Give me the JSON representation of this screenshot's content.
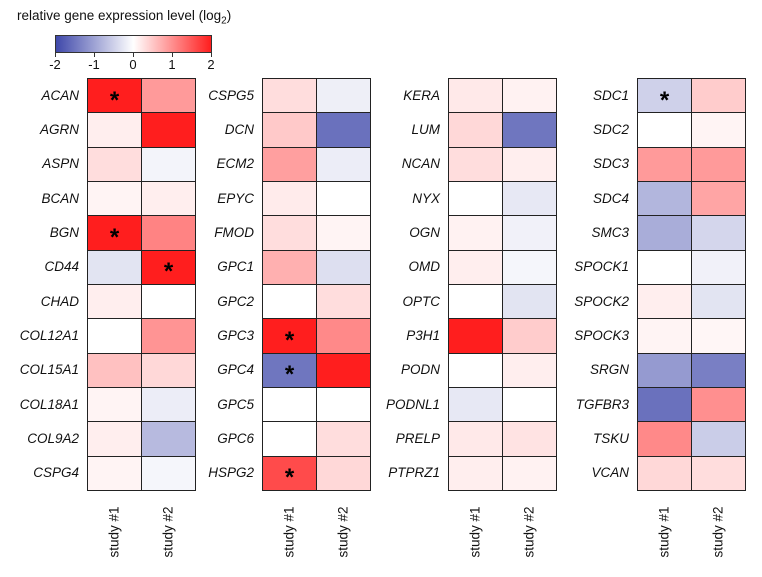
{
  "legend": {
    "title_prefix": "relative gene expression level (log",
    "title_sub": "2",
    "title_suffix": ")",
    "ticks": [
      "-2",
      "-1",
      "0",
      "1",
      "2"
    ],
    "color_negative": "#3F48AA",
    "color_zero": "#FFFFFF",
    "color_positive": "#FF1E1E"
  },
  "chart_data": {
    "type": "heatmap",
    "title": "relative gene expression level (log2)",
    "columns": [
      "study #1",
      "study #2"
    ],
    "value_range": [
      -2,
      2
    ],
    "colormap": [
      {
        "value": -2,
        "color": "#3F48AA"
      },
      {
        "value": 0,
        "color": "#FFFFFF"
      },
      {
        "value": 2,
        "color": "#FF1E1E"
      }
    ],
    "significance_marker": "*",
    "panels": [
      {
        "rows": [
          {
            "gene": "ACAN",
            "values": [
              2.0,
              0.9
            ],
            "sig": [
              true,
              false
            ]
          },
          {
            "gene": "AGRN",
            "values": [
              0.15,
              2.0
            ],
            "sig": [
              false,
              false
            ]
          },
          {
            "gene": "ASPN",
            "values": [
              0.3,
              -0.12
            ],
            "sig": [
              false,
              false
            ]
          },
          {
            "gene": "BCAN",
            "values": [
              0.1,
              0.15
            ],
            "sig": [
              false,
              false
            ]
          },
          {
            "gene": "BGN",
            "values": [
              2.0,
              1.1
            ],
            "sig": [
              true,
              false
            ]
          },
          {
            "gene": "CD44",
            "values": [
              -0.3,
              2.0
            ],
            "sig": [
              false,
              true
            ]
          },
          {
            "gene": "CHAD",
            "values": [
              0.15,
              0.0
            ],
            "sig": [
              false,
              false
            ]
          },
          {
            "gene": "COL12A1",
            "values": [
              0.0,
              0.95
            ],
            "sig": [
              false,
              false
            ]
          },
          {
            "gene": "COL15A1",
            "values": [
              0.55,
              0.35
            ],
            "sig": [
              false,
              false
            ]
          },
          {
            "gene": "COL18A1",
            "values": [
              0.1,
              -0.2
            ],
            "sig": [
              false,
              false
            ]
          },
          {
            "gene": "COL9A2",
            "values": [
              0.15,
              -0.75
            ],
            "sig": [
              false,
              false
            ]
          },
          {
            "gene": "CSPG4",
            "values": [
              0.1,
              -0.1
            ],
            "sig": [
              false,
              false
            ]
          }
        ]
      },
      {
        "rows": [
          {
            "gene": "CSPG5",
            "values": [
              0.3,
              -0.18
            ],
            "sig": [
              false,
              false
            ]
          },
          {
            "gene": "DCN",
            "values": [
              0.48,
              -1.55
            ],
            "sig": [
              false,
              false
            ]
          },
          {
            "gene": "ECM2",
            "values": [
              0.85,
              -0.2
            ],
            "sig": [
              false,
              false
            ]
          },
          {
            "gene": "EPYC",
            "values": [
              0.18,
              0.0
            ],
            "sig": [
              false,
              false
            ]
          },
          {
            "gene": "FMOD",
            "values": [
              0.3,
              0.1
            ],
            "sig": [
              false,
              false
            ]
          },
          {
            "gene": "GPC1",
            "values": [
              0.7,
              -0.35
            ],
            "sig": [
              false,
              false
            ]
          },
          {
            "gene": "GPC2",
            "values": [
              0.0,
              0.3
            ],
            "sig": [
              false,
              false
            ]
          },
          {
            "gene": "GPC3",
            "values": [
              2.0,
              1.05
            ],
            "sig": [
              true,
              false
            ]
          },
          {
            "gene": "GPC4",
            "values": [
              -1.5,
              2.0
            ],
            "sig": [
              true,
              false
            ]
          },
          {
            "gene": "GPC5",
            "values": [
              0.0,
              0.0
            ],
            "sig": [
              false,
              false
            ]
          },
          {
            "gene": "GPC6",
            "values": [
              0.0,
              0.3
            ],
            "sig": [
              false,
              false
            ]
          },
          {
            "gene": "HSPG2",
            "values": [
              1.6,
              0.35
            ],
            "sig": [
              true,
              false
            ]
          }
        ]
      },
      {
        "rows": [
          {
            "gene": "KERA",
            "values": [
              0.2,
              0.12
            ],
            "sig": [
              false,
              false
            ]
          },
          {
            "gene": "LUM",
            "values": [
              0.35,
              -1.5
            ],
            "sig": [
              false,
              false
            ]
          },
          {
            "gene": "NCAN",
            "values": [
              0.3,
              0.15
            ],
            "sig": [
              false,
              false
            ]
          },
          {
            "gene": "NYX",
            "values": [
              0.0,
              -0.25
            ],
            "sig": [
              false,
              false
            ]
          },
          {
            "gene": "OGN",
            "values": [
              0.12,
              -0.15
            ],
            "sig": [
              false,
              false
            ]
          },
          {
            "gene": "OMD",
            "values": [
              0.15,
              -0.1
            ],
            "sig": [
              false,
              false
            ]
          },
          {
            "gene": "OPTC",
            "values": [
              0.0,
              -0.3
            ],
            "sig": [
              false,
              false
            ]
          },
          {
            "gene": "P3H1",
            "values": [
              2.0,
              0.45
            ],
            "sig": [
              false,
              false
            ]
          },
          {
            "gene": "PODN",
            "values": [
              0.0,
              0.15
            ],
            "sig": [
              false,
              false
            ]
          },
          {
            "gene": "PODNL1",
            "values": [
              -0.25,
              0.0
            ],
            "sig": [
              false,
              false
            ]
          },
          {
            "gene": "PRELP",
            "values": [
              0.2,
              0.25
            ],
            "sig": [
              false,
              false
            ]
          },
          {
            "gene": "PTPRZ1",
            "values": [
              0.15,
              0.12
            ],
            "sig": [
              false,
              false
            ]
          }
        ]
      },
      {
        "rows": [
          {
            "gene": "SDC1",
            "values": [
              -0.5,
              0.45
            ],
            "sig": [
              true,
              false
            ]
          },
          {
            "gene": "SDC2",
            "values": [
              0.0,
              0.1
            ],
            "sig": [
              false,
              false
            ]
          },
          {
            "gene": "SDC3",
            "values": [
              0.9,
              0.9
            ],
            "sig": [
              false,
              false
            ]
          },
          {
            "gene": "SDC4",
            "values": [
              -0.8,
              0.8
            ],
            "sig": [
              false,
              false
            ]
          },
          {
            "gene": "SMC3",
            "values": [
              -0.9,
              -0.45
            ],
            "sig": [
              false,
              false
            ]
          },
          {
            "gene": "SPOCK1",
            "values": [
              0.0,
              -0.15
            ],
            "sig": [
              false,
              false
            ]
          },
          {
            "gene": "SPOCK2",
            "values": [
              0.15,
              -0.3
            ],
            "sig": [
              false,
              false
            ]
          },
          {
            "gene": "SPOCK3",
            "values": [
              0.1,
              0.08
            ],
            "sig": [
              false,
              false
            ]
          },
          {
            "gene": "SRGN",
            "values": [
              -1.1,
              -1.4
            ],
            "sig": [
              false,
              false
            ]
          },
          {
            "gene": "TGFBR3",
            "values": [
              -1.55,
              1.0
            ],
            "sig": [
              false,
              false
            ]
          },
          {
            "gene": "TSKU",
            "values": [
              1.05,
              -0.55
            ],
            "sig": [
              false,
              false
            ]
          },
          {
            "gene": "VCAN",
            "values": [
              0.35,
              0.3
            ],
            "sig": [
              false,
              false
            ]
          }
        ]
      }
    ]
  }
}
